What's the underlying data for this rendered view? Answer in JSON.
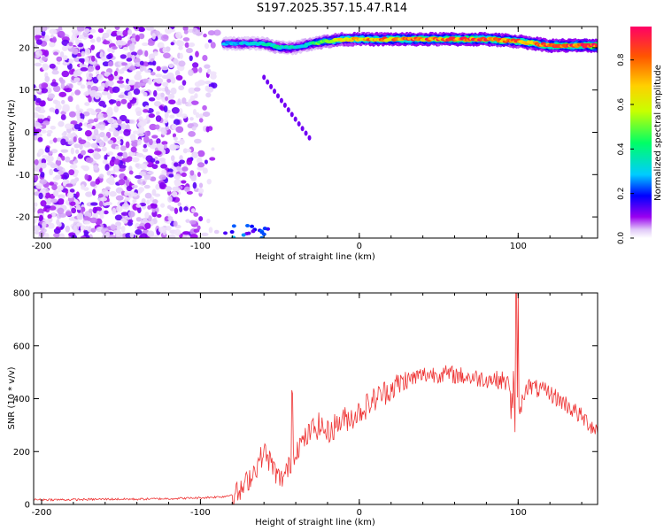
{
  "title": "S197.2025.357.15.47.R14",
  "chart_data": [
    {
      "type": "heatmap",
      "xlabel": "Height of straight line (km)",
      "ylabel": "Frequency (Hz)",
      "xlim": [
        -205,
        150
      ],
      "ylim": [
        -25,
        25
      ],
      "xticks": [
        -200,
        -100,
        0,
        100
      ],
      "xticklabels": [
        "-200",
        "-100",
        "0",
        "100"
      ],
      "yticks": [
        -20,
        -10,
        0,
        10,
        20
      ],
      "yticklabels": [
        "-20",
        "-10",
        "0",
        "10",
        "20"
      ],
      "colorbar": {
        "label": "Normalized spectral amplitude",
        "range": [
          0,
          0.95
        ],
        "ticks": [
          0,
          0.2,
          0.4,
          0.6,
          0.8
        ],
        "ticklabels": [
          "0.0",
          "0.2",
          "0.4",
          "0.6",
          "0.8"
        ],
        "colors": [
          "#ffffff",
          "#c9a2f2",
          "#9a00f0",
          "#0000ff",
          "#00ccff",
          "#00ff66",
          "#c8ff00",
          "#ffd000",
          "#ff5500",
          "#ff0066"
        ]
      },
      "signal_trace": {
        "description_x": [
          -80,
          -60,
          -50,
          -40,
          -30,
          -20,
          -10,
          0,
          20,
          40,
          60,
          80,
          100,
          120,
          150
        ],
        "frequency_hz": [
          21,
          21,
          20,
          20,
          21,
          21.5,
          22,
          22,
          22,
          22,
          22,
          22,
          21.5,
          20.5,
          20.5
        ],
        "peak_amplitude": [
          0.3,
          0.35,
          0.4,
          0.35,
          0.4,
          0.6,
          0.7,
          0.75,
          0.8,
          0.85,
          0.85,
          0.9,
          0.8,
          0.85,
          0.95
        ]
      },
      "noise_region_x": [
        -205,
        -85
      ]
    },
    {
      "type": "line",
      "xlabel": "Height of straight line (km)",
      "ylabel": "SNR (10 * v/v)",
      "xlim": [
        -205,
        150
      ],
      "ylim": [
        0,
        800
      ],
      "xticks": [
        -200,
        -100,
        0,
        100
      ],
      "xticklabels": [
        "-200",
        "-100",
        "0",
        "100"
      ],
      "yticks": [
        0,
        200,
        400,
        600,
        800
      ],
      "yticklabels": [
        "0",
        "200",
        "400",
        "600",
        "800"
      ],
      "color": "#ee3333",
      "x": [
        -205,
        -180,
        -160,
        -140,
        -120,
        -100,
        -85,
        -75,
        -65,
        -60,
        -55,
        -50,
        -45,
        -40,
        -35,
        -30,
        -25,
        -20,
        -15,
        -10,
        -5,
        0,
        10,
        20,
        30,
        40,
        50,
        60,
        70,
        80,
        90,
        95,
        100,
        105,
        110,
        120,
        130,
        140,
        150
      ],
      "values": [
        18,
        18,
        20,
        20,
        22,
        25,
        30,
        45,
        140,
        200,
        150,
        90,
        130,
        210,
        240,
        280,
        300,
        270,
        300,
        320,
        330,
        350,
        400,
        440,
        470,
        490,
        495,
        490,
        480,
        475,
        470,
        450,
        330,
        450,
        440,
        420,
        380,
        330,
        280
      ]
    }
  ]
}
